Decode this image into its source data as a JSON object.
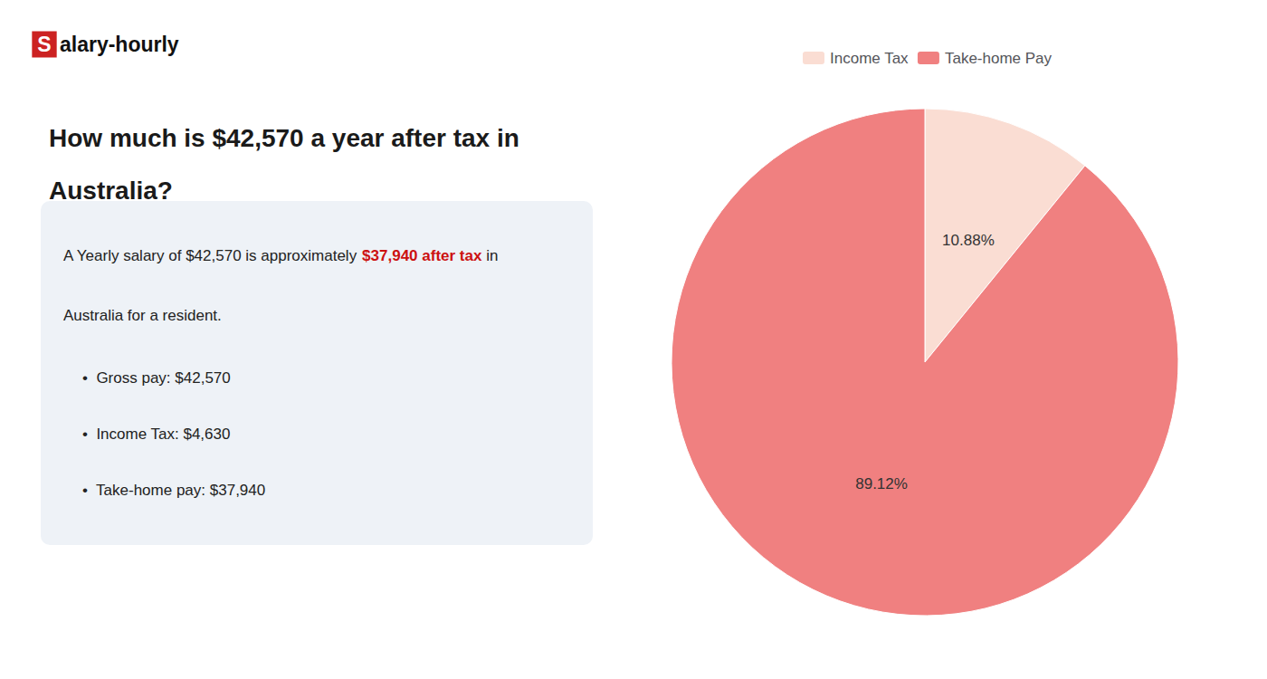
{
  "chart_data": {
    "type": "pie",
    "title": "How much is $42,570 a year after tax in\nAustralia?",
    "categories": [
      "Income Tax",
      "Take-home Pay"
    ],
    "values": [
      10.88,
      89.12
    ],
    "value_labels": [
      "10.88%",
      "89.12%"
    ],
    "colors": [
      "#faddd3",
      "#f08080"
    ],
    "data_labels": true,
    "legend": "top",
    "annotations": [
      {
        "text": "S",
        "color": "#ffffff",
        "background": "#cc2222"
      },
      {
        "text": "alary-hourly",
        "color": "#111111"
      },
      {
        "text": "A Yearly salary of $42,570 is approximately ",
        "color": "#222222"
      },
      {
        "text": "$37,940 after tax",
        "color": "#cc1111"
      },
      {
        "text": " in",
        "color": "#222222"
      },
      {
        "text": "Australia for a resident.",
        "color": "#222222"
      },
      {
        "text": "•  Gross pay: $42,570",
        "color": "#222222"
      },
      {
        "text": "•  Income Tax: $4,630",
        "color": "#222222"
      },
      {
        "text": "•  Take-home pay: $37,940",
        "color": "#222222"
      }
    ]
  }
}
